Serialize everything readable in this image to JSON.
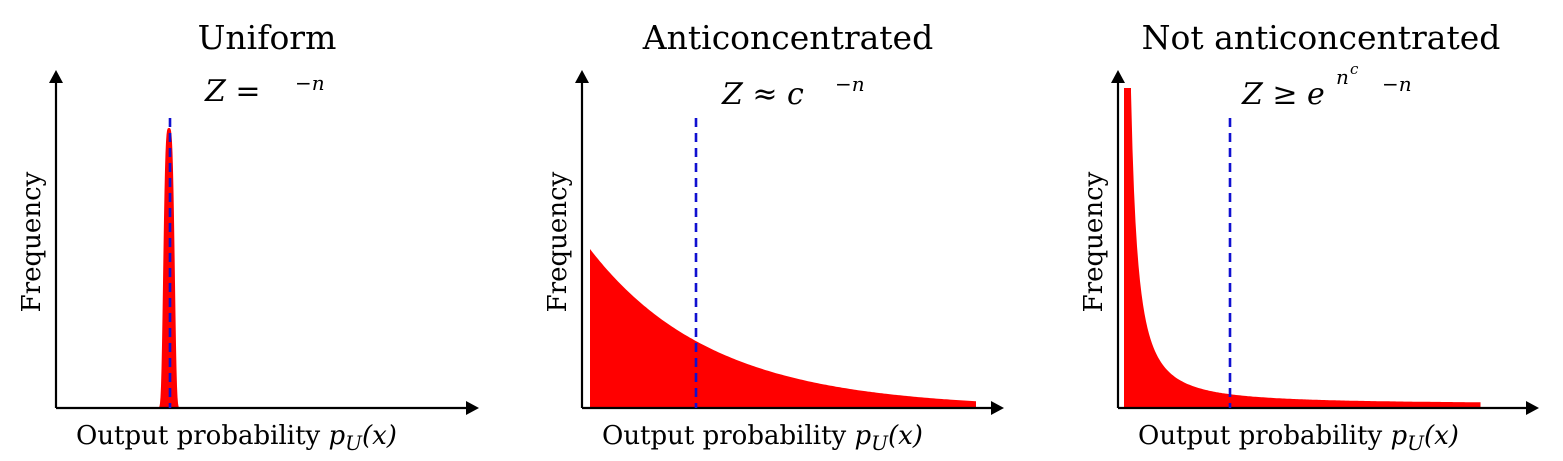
{
  "panels": [
    {
      "title": "Uniform",
      "ylabel": "Frequency",
      "xlabel_text": "Output probability ",
      "xlabel_math": "p",
      "xlabel_sub": "U",
      "xlabel_arg": "(x)",
      "formula_main": "Z =",
      "formula_sup": "−n",
      "distribution": "peak",
      "fill_color": "#ff0000",
      "mean_line_color": "#1010d0"
    },
    {
      "title": "Anticoncentrated",
      "ylabel": "Frequency",
      "xlabel_text": "Output probability ",
      "xlabel_math": "p",
      "xlabel_sub": "U",
      "xlabel_arg": "(x)",
      "formula_main": "Z ≈ c",
      "formula_sup": "−n",
      "distribution": "exponential",
      "fill_color": "#ff0000",
      "mean_line_color": "#1010d0"
    },
    {
      "title": "Not anticoncentrated",
      "ylabel": "Frequency",
      "xlabel_text": "Output probability ",
      "xlabel_math": "p",
      "xlabel_sub": "U",
      "xlabel_arg": "(x)",
      "formula_main": "Z ≥ e",
      "formula_exp_base": "n",
      "formula_exp_sup": "c",
      "formula_sup": "−n",
      "distribution": "heavy-tail",
      "fill_color": "#ff0000",
      "mean_line_color": "#1010d0"
    }
  ]
}
